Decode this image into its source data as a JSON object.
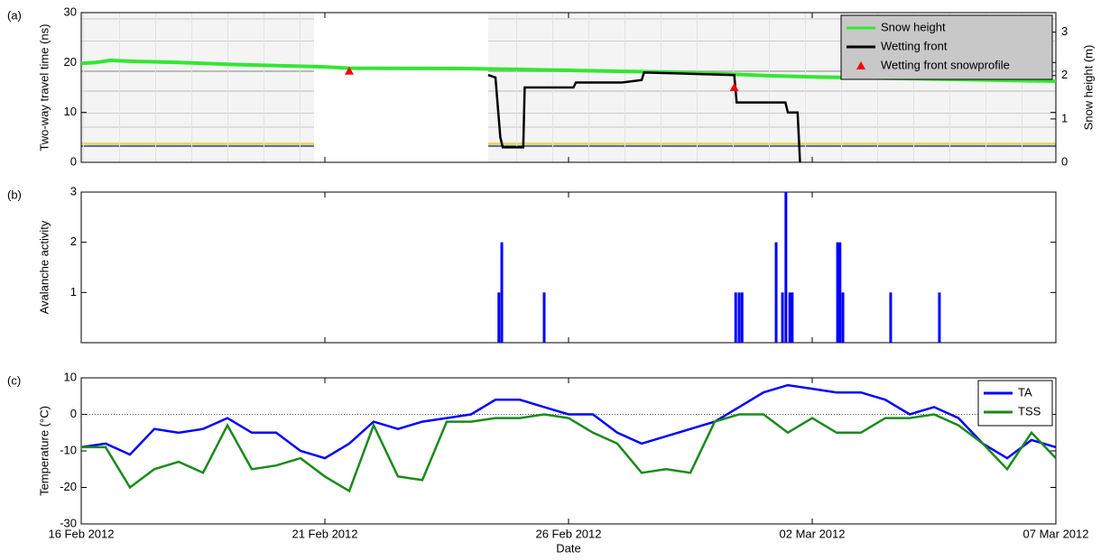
{
  "chart_data": [
    {
      "type": "line",
      "panel_label": "(a)",
      "ylabel": "Two-way travel time (ns)",
      "y2label": "Snow height (m)",
      "xlim": [
        0,
        20
      ],
      "ylim": [
        0,
        30
      ],
      "yticks": [
        0,
        10,
        20,
        30
      ],
      "y2lim": [
        0,
        3.45
      ],
      "y2ticks": [
        0,
        1,
        2,
        3
      ],
      "legend": "upper right",
      "series": [
        {
          "name": "Snow height",
          "color": "#33e633",
          "axis": "y2",
          "x": [
            0,
            0.3,
            0.6,
            1,
            2,
            3,
            4,
            5,
            5.5,
            8,
            9,
            10,
            11,
            12,
            13,
            14,
            15,
            16,
            17,
            18,
            19,
            20
          ],
          "values": [
            2.28,
            2.3,
            2.35,
            2.33,
            2.3,
            2.26,
            2.23,
            2.2,
            2.17,
            2.16,
            2.14,
            2.12,
            2.1,
            2.08,
            2.05,
            2.0,
            1.97,
            1.95,
            1.93,
            1.91,
            1.89,
            1.87
          ]
        },
        {
          "name": "Wetting front",
          "color": "#000000",
          "x": [
            8.35,
            8.5,
            8.6,
            8.65,
            9.07,
            9.1,
            10.1,
            10.15,
            11.1,
            11.5,
            11.55,
            13.4,
            13.45,
            14.45,
            14.5,
            14.7,
            14.75
          ],
          "values": [
            17.5,
            17,
            5,
            3,
            3,
            15,
            15,
            16,
            16,
            16.5,
            18,
            17.5,
            12,
            12,
            10,
            10,
            0
          ]
        },
        {
          "name": "Wetting front snowprofile",
          "color": "#ff0000",
          "marker": "triangle",
          "x": [
            5.5,
            13.4
          ],
          "values": [
            18.3,
            15
          ]
        }
      ]
    },
    {
      "type": "bar",
      "panel_label": "(b)",
      "ylabel": "Avalanche activity",
      "color": "#0000ff",
      "xlim": [
        0,
        20
      ],
      "ylim": [
        0,
        3
      ],
      "yticks": [
        1,
        2,
        3
      ],
      "x": [
        8.57,
        8.63,
        9.5,
        13.43,
        13.5,
        13.56,
        14.26,
        14.39,
        14.46,
        14.54,
        14.59,
        15.52,
        15.57,
        15.63,
        16.61,
        17.61
      ],
      "values": [
        1,
        2,
        1,
        1,
        1,
        1,
        2,
        1,
        3,
        1,
        1,
        2,
        2,
        1,
        1,
        1
      ]
    },
    {
      "type": "line",
      "panel_label": "(c)",
      "ylabel": "Temperature (°C)",
      "xlabel": "Date",
      "xlim": [
        0,
        20
      ],
      "ylim": [
        -30,
        10
      ],
      "yticks": [
        -30,
        -20,
        -10,
        0,
        10
      ],
      "zero_line": true,
      "legend": "upper right",
      "xticks": [
        {
          "value": 0,
          "label": "16 Feb 2012"
        },
        {
          "value": 5,
          "label": "21 Feb 2012"
        },
        {
          "value": 10,
          "label": "26 Feb 2012"
        },
        {
          "value": 15,
          "label": "02 Mar 2012"
        },
        {
          "value": 20,
          "label": "07 Mar 2012"
        }
      ],
      "x": [
        0,
        0.5,
        1,
        1.5,
        2,
        2.5,
        3,
        3.5,
        4,
        4.5,
        5,
        5.5,
        6,
        6.5,
        7,
        7.5,
        8,
        8.5,
        9,
        9.5,
        10,
        10.5,
        11,
        11.5,
        12,
        12.5,
        13,
        13.5,
        14,
        14.5,
        15,
        15.5,
        16,
        16.5,
        17,
        17.5,
        18,
        18.5,
        19,
        19.5,
        20
      ],
      "series": [
        {
          "name": "TA",
          "color": "#0000ff",
          "values": [
            -9,
            -8,
            -11,
            -4,
            -5,
            -4,
            -1,
            -5,
            -5,
            -10,
            -12,
            -8,
            -2,
            -4,
            -2,
            -1,
            0,
            4,
            4,
            2,
            0,
            0,
            -5,
            -8,
            -6,
            -4,
            -2,
            2,
            6,
            8,
            7,
            6,
            6,
            4,
            0,
            2,
            -1,
            -8,
            -12,
            -7,
            -9
          ]
        },
        {
          "name": "TSS",
          "color": "#1a8a1a",
          "values": [
            -9,
            -9,
            -20,
            -15,
            -13,
            -16,
            -3,
            -15,
            -14,
            -12,
            -17,
            -21,
            -3,
            -17,
            -18,
            -2,
            -2,
            -1,
            -1,
            0,
            -1,
            -5,
            -8,
            -16,
            -15,
            -16,
            -2,
            0,
            0,
            -5,
            -1,
            -5,
            -5,
            -1,
            -1,
            0,
            -3,
            -8,
            -15,
            -5,
            -12
          ]
        }
      ]
    }
  ]
}
